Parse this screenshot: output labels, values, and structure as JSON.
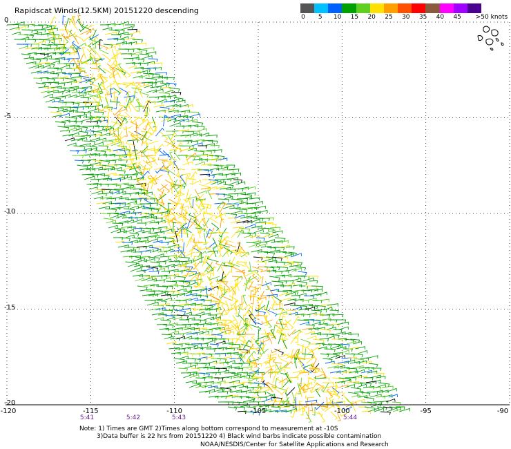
{
  "title": "Rapidscat Winds(12.5KM) 20151220 descending",
  "colorbar": {
    "unit_label": ">50 knots",
    "ticks": [
      "0",
      "5",
      "10",
      "15",
      "20",
      "25",
      "30",
      "35",
      "40",
      "45"
    ],
    "colors": [
      "#555555",
      "#00c0ff",
      "#0060ff",
      "#00a000",
      "#60d020",
      "#ffe000",
      "#ffa000",
      "#ff5000",
      "#ff0000",
      "#8b5a3c",
      "#ff00ff",
      "#a000ff",
      "#4b0090"
    ]
  },
  "map": {
    "lon_ticks": [
      "-120",
      "-115",
      "-110",
      "-105",
      "-100",
      "-95",
      "-90"
    ],
    "lat_ticks": [
      "0",
      "-5",
      "-10",
      "-15",
      "-20"
    ],
    "gridlines": "dotted",
    "times": [
      "5:41",
      "5:42",
      "5:43",
      "5:44"
    ]
  },
  "notes": {
    "line1": "Note: 1) Times are GMT 2)Times along bottom correspond to measurement at -10S",
    "line2": "3)Data buffer is 22 hrs from 20151220 4) Black wind barbs indicate possible contamination",
    "credit": "NOAA/NESDIS/Center for Satellite Applications and Research"
  }
}
